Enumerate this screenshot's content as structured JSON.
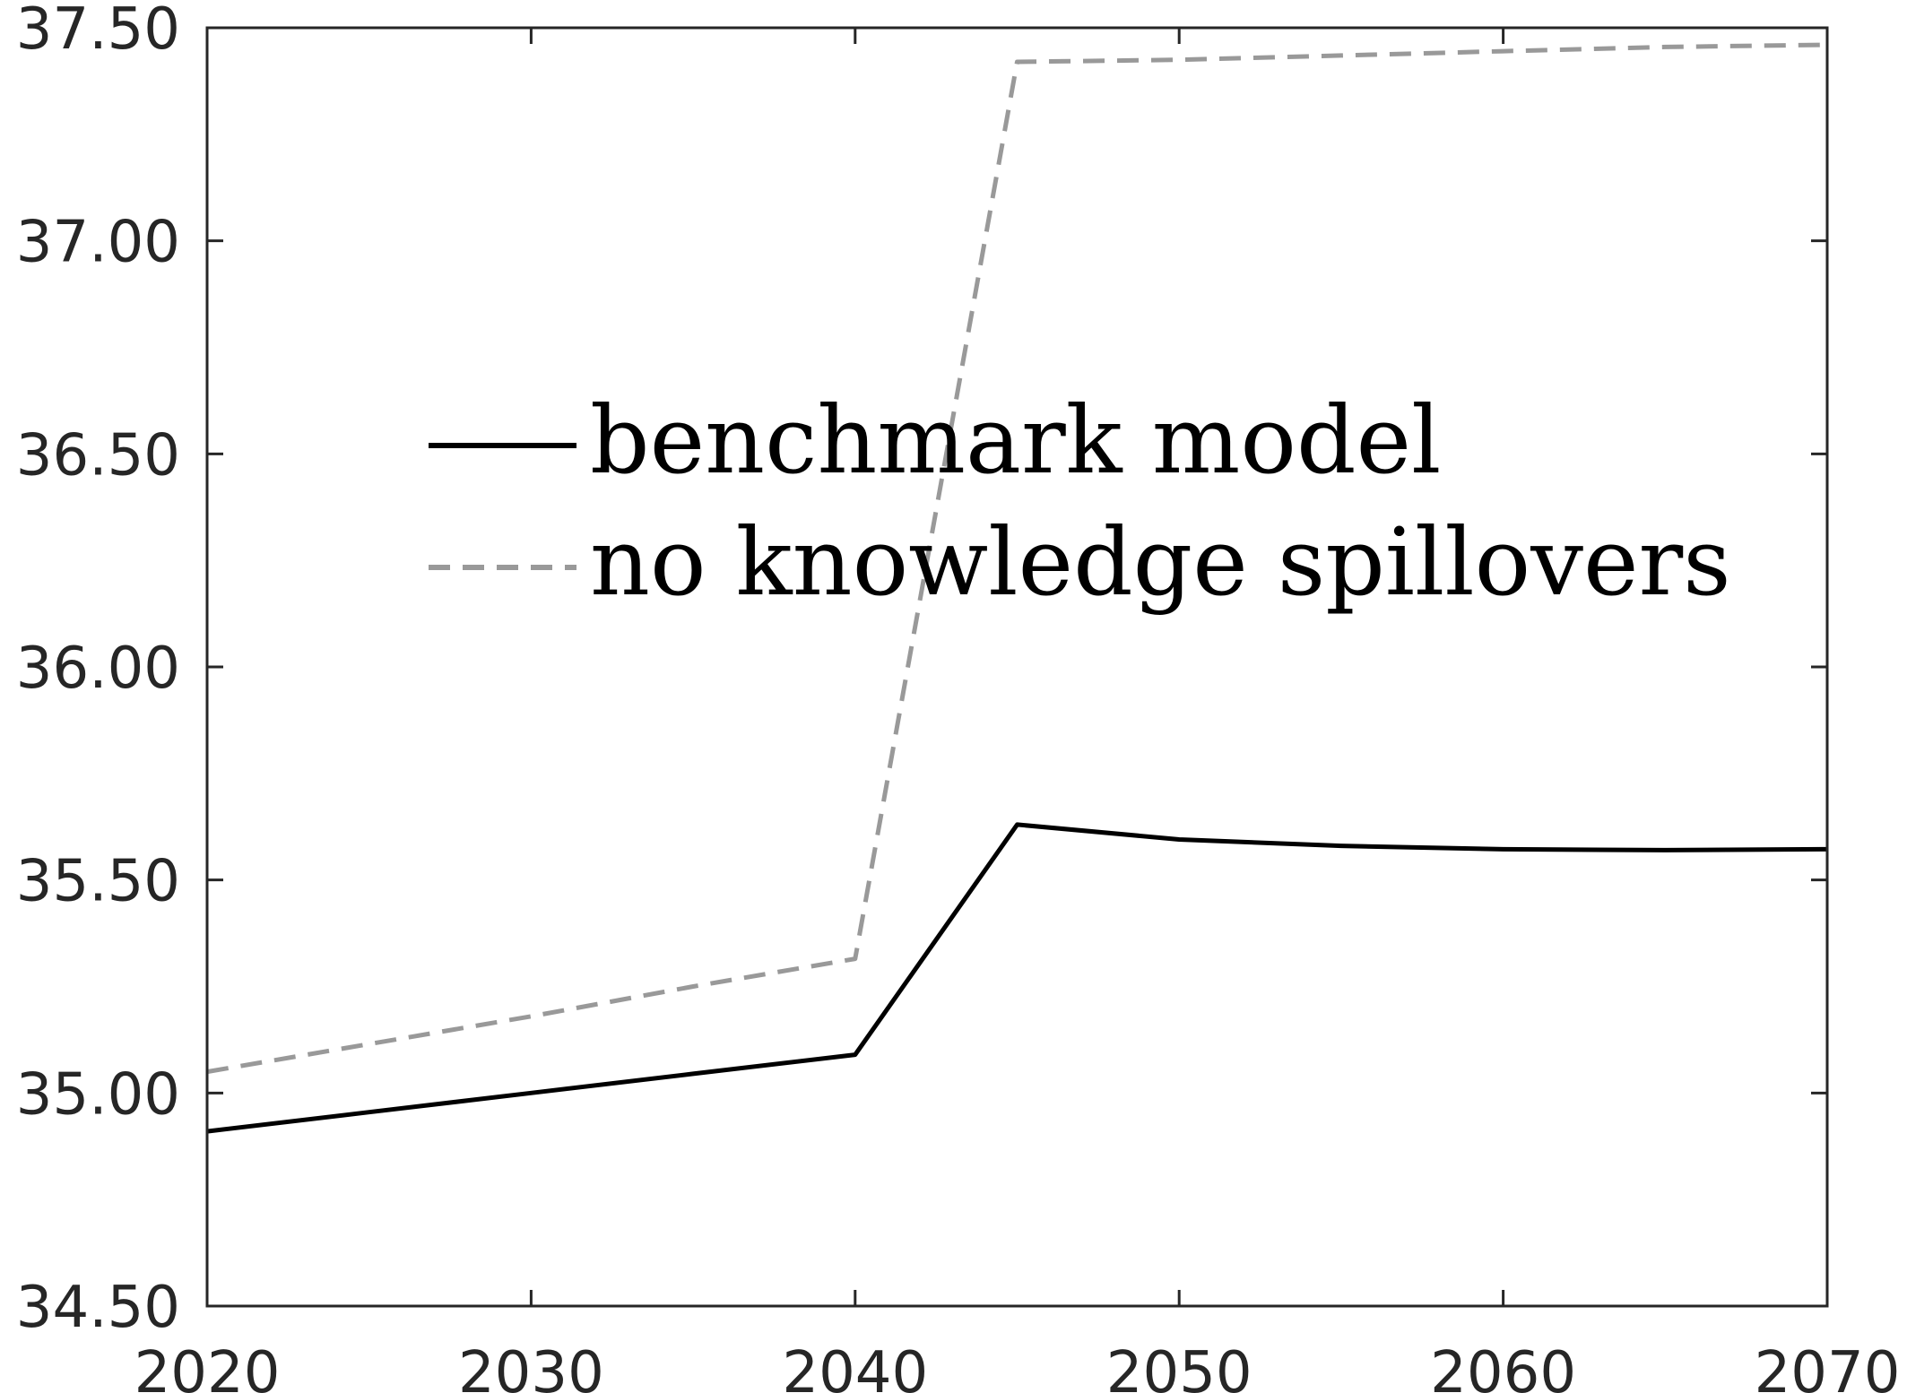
{
  "chart_data": {
    "type": "line",
    "title": "",
    "xlabel": "",
    "ylabel": "",
    "xlim": [
      2020,
      2070
    ],
    "ylim": [
      34.5,
      37.5
    ],
    "xticks": [
      "2020",
      "2030",
      "2040",
      "2050",
      "2060",
      "2070"
    ],
    "yticks": [
      "37.50",
      "37.00",
      "36.50",
      "36.00",
      "35.50",
      "35.00",
      "34.50"
    ],
    "grid": false,
    "legend_position": "center-left",
    "x": [
      2020,
      2025,
      2030,
      2035,
      2040,
      2045,
      2050,
      2055,
      2060,
      2065,
      2070
    ],
    "series": [
      {
        "name": "benchmark model",
        "style": "solid",
        "color": "#000000",
        "values": [
          34.91,
          34.955,
          35.0,
          35.045,
          35.09,
          35.63,
          35.595,
          35.58,
          35.572,
          35.57,
          35.572
        ]
      },
      {
        "name": "no knowledge spillovers",
        "style": "dashed",
        "color": "#999999",
        "values": [
          35.05,
          35.115,
          35.18,
          35.25,
          35.315,
          37.42,
          37.425,
          37.435,
          37.445,
          37.455,
          37.46
        ]
      }
    ]
  }
}
